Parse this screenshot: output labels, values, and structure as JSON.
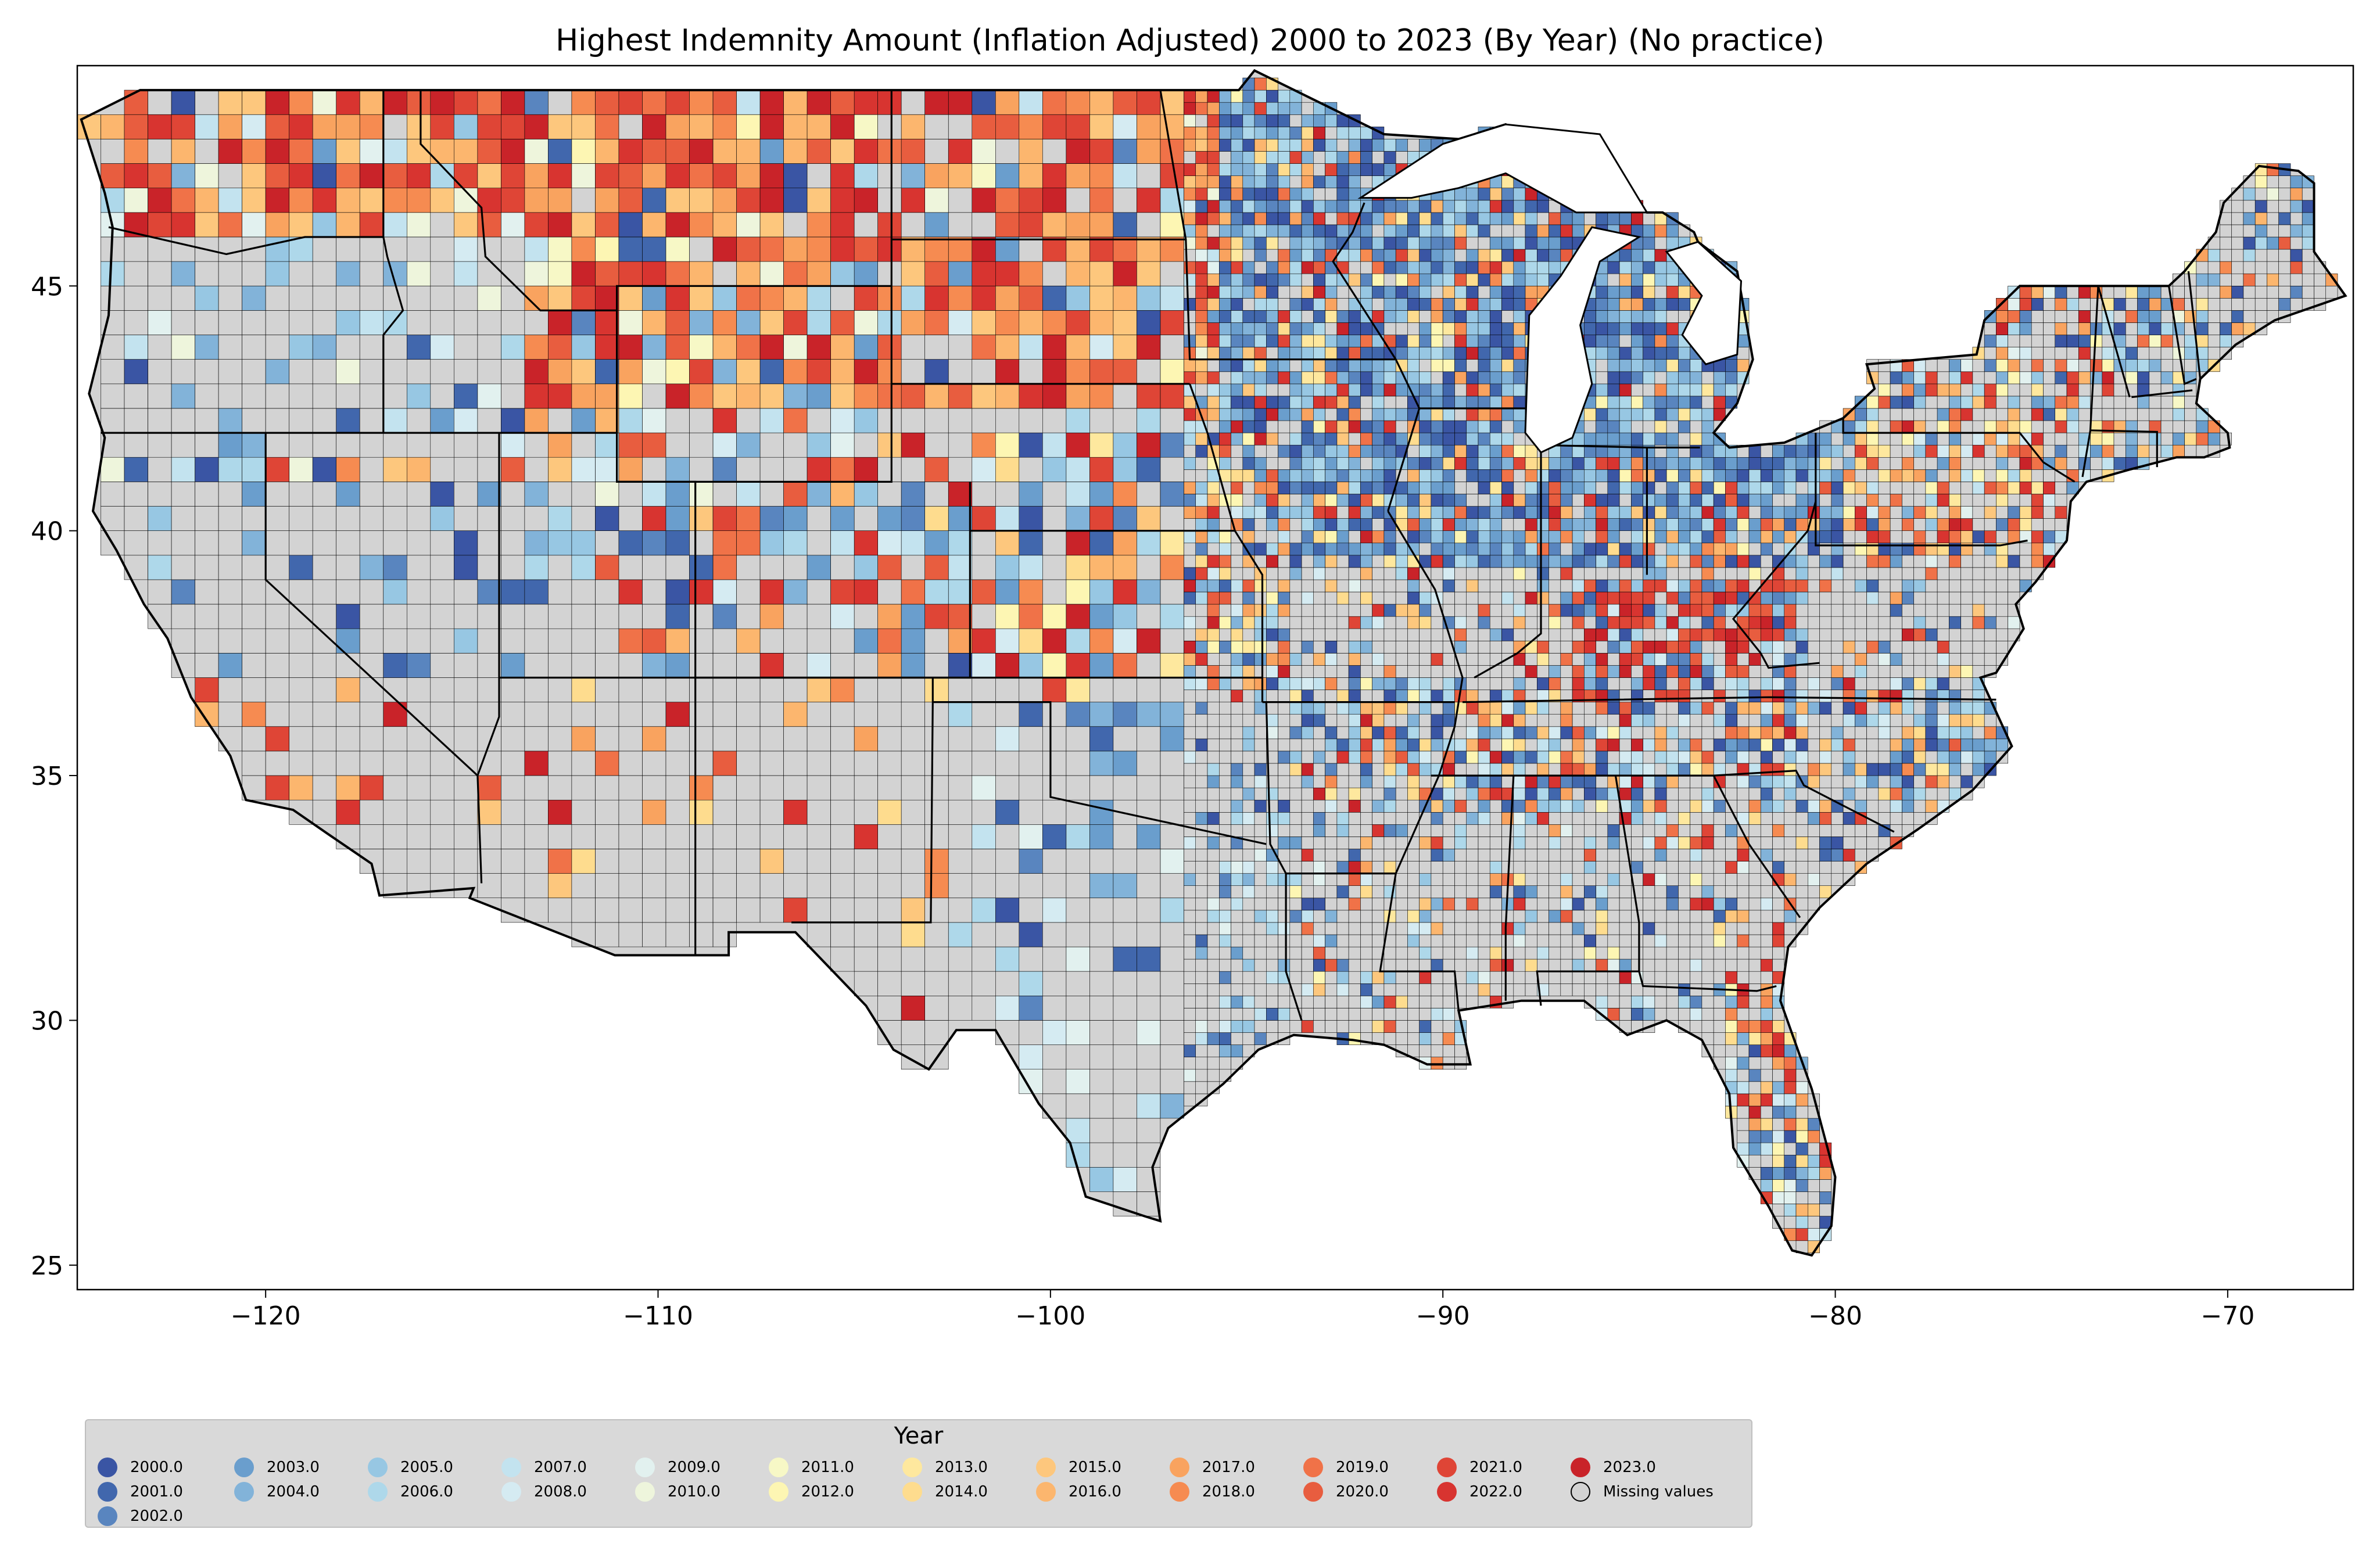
{
  "title": "Highest Indemnity Amount  (Inflation Adjusted) 2000 to 2023 (By Year) (No practice)",
  "map": {
    "x_axis": {
      "ticks": [
        -120,
        -110,
        -100,
        -90,
        -80,
        -70
      ],
      "labels": [
        "−120",
        "−110",
        "−100",
        "−90",
        "−80",
        "−70"
      ],
      "range": [
        -124.8,
        -66.8
      ]
    },
    "y_axis": {
      "ticks": [
        25,
        30,
        35,
        40,
        45
      ],
      "labels": [
        "25",
        "30",
        "35",
        "40",
        "45"
      ],
      "range": [
        24.5,
        49.5
      ]
    },
    "missing_color": "#d3d3d3"
  },
  "legend": {
    "title": "Year",
    "items": [
      {
        "label": "2000.0",
        "color": "#3a55a4"
      },
      {
        "label": "2001.0",
        "color": "#4167ad"
      },
      {
        "label": "2002.0",
        "color": "#5985bf"
      },
      {
        "label": "2003.0",
        "color": "#6a9ecd"
      },
      {
        "label": "2004.0",
        "color": "#82b3d9"
      },
      {
        "label": "2005.0",
        "color": "#97c7e3"
      },
      {
        "label": "2006.0",
        "color": "#aed8ea"
      },
      {
        "label": "2007.0",
        "color": "#c3e3ef"
      },
      {
        "label": "2008.0",
        "color": "#d5ebf2"
      },
      {
        "label": "2009.0",
        "color": "#e2f1ef"
      },
      {
        "label": "2010.0",
        "color": "#eef5dc"
      },
      {
        "label": "2011.0",
        "color": "#f7f8c6"
      },
      {
        "label": "2012.0",
        "color": "#fdf6b3"
      },
      {
        "label": "2013.0",
        "color": "#fee89e"
      },
      {
        "label": "2014.0",
        "color": "#fedc8e"
      },
      {
        "label": "2015.0",
        "color": "#fdc77d"
      },
      {
        "label": "2016.0",
        "color": "#fcb66e"
      },
      {
        "label": "2017.0",
        "color": "#f9a35f"
      },
      {
        "label": "2018.0",
        "color": "#f68b51"
      },
      {
        "label": "2019.0",
        "color": "#f07248"
      },
      {
        "label": "2020.0",
        "color": "#e85d3f"
      },
      {
        "label": "2021.0",
        "color": "#df4536"
      },
      {
        "label": "2022.0",
        "color": "#d83430"
      },
      {
        "label": "2023.0",
        "color": "#c92329"
      },
      {
        "label": "Missing values",
        "color": "#d3d3d3"
      }
    ]
  }
}
